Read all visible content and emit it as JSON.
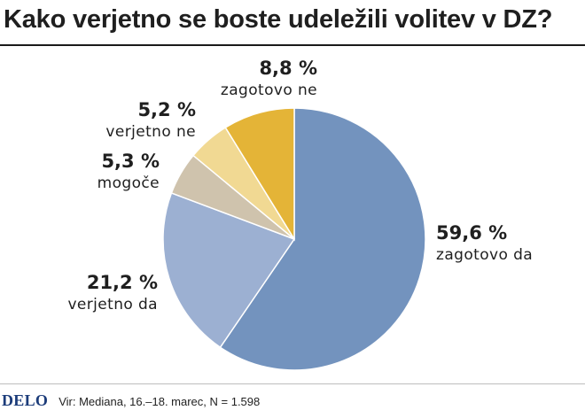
{
  "header": {
    "title": "Kako verjetno se boste udeležili volitev v DZ?"
  },
  "chart_data": {
    "type": "pie",
    "title": "Kako verjetno se boste udeležili volitev v DZ?",
    "slices": [
      {
        "label": "zagotovo da",
        "value": 59.6,
        "value_text": "59,6 %",
        "color": "#7393be"
      },
      {
        "label": "verjetno da",
        "value": 21.2,
        "value_text": "21,2 %",
        "color": "#9cb0d2"
      },
      {
        "label": "mogoče",
        "value": 5.3,
        "value_text": "5,3 %",
        "color": "#cfc3ad"
      },
      {
        "label": "verjetno ne",
        "value": 5.2,
        "value_text": "5,2 %",
        "color": "#f1d993"
      },
      {
        "label": "zagotovo ne",
        "value": 8.8,
        "value_text": "8,8 %",
        "color": "#e4b437"
      }
    ],
    "start": "12 o'clock",
    "direction": "clockwise"
  },
  "footer": {
    "logo": "DELO",
    "source": "Vir: Mediana, 16.–18. marec, N = 1.598"
  }
}
